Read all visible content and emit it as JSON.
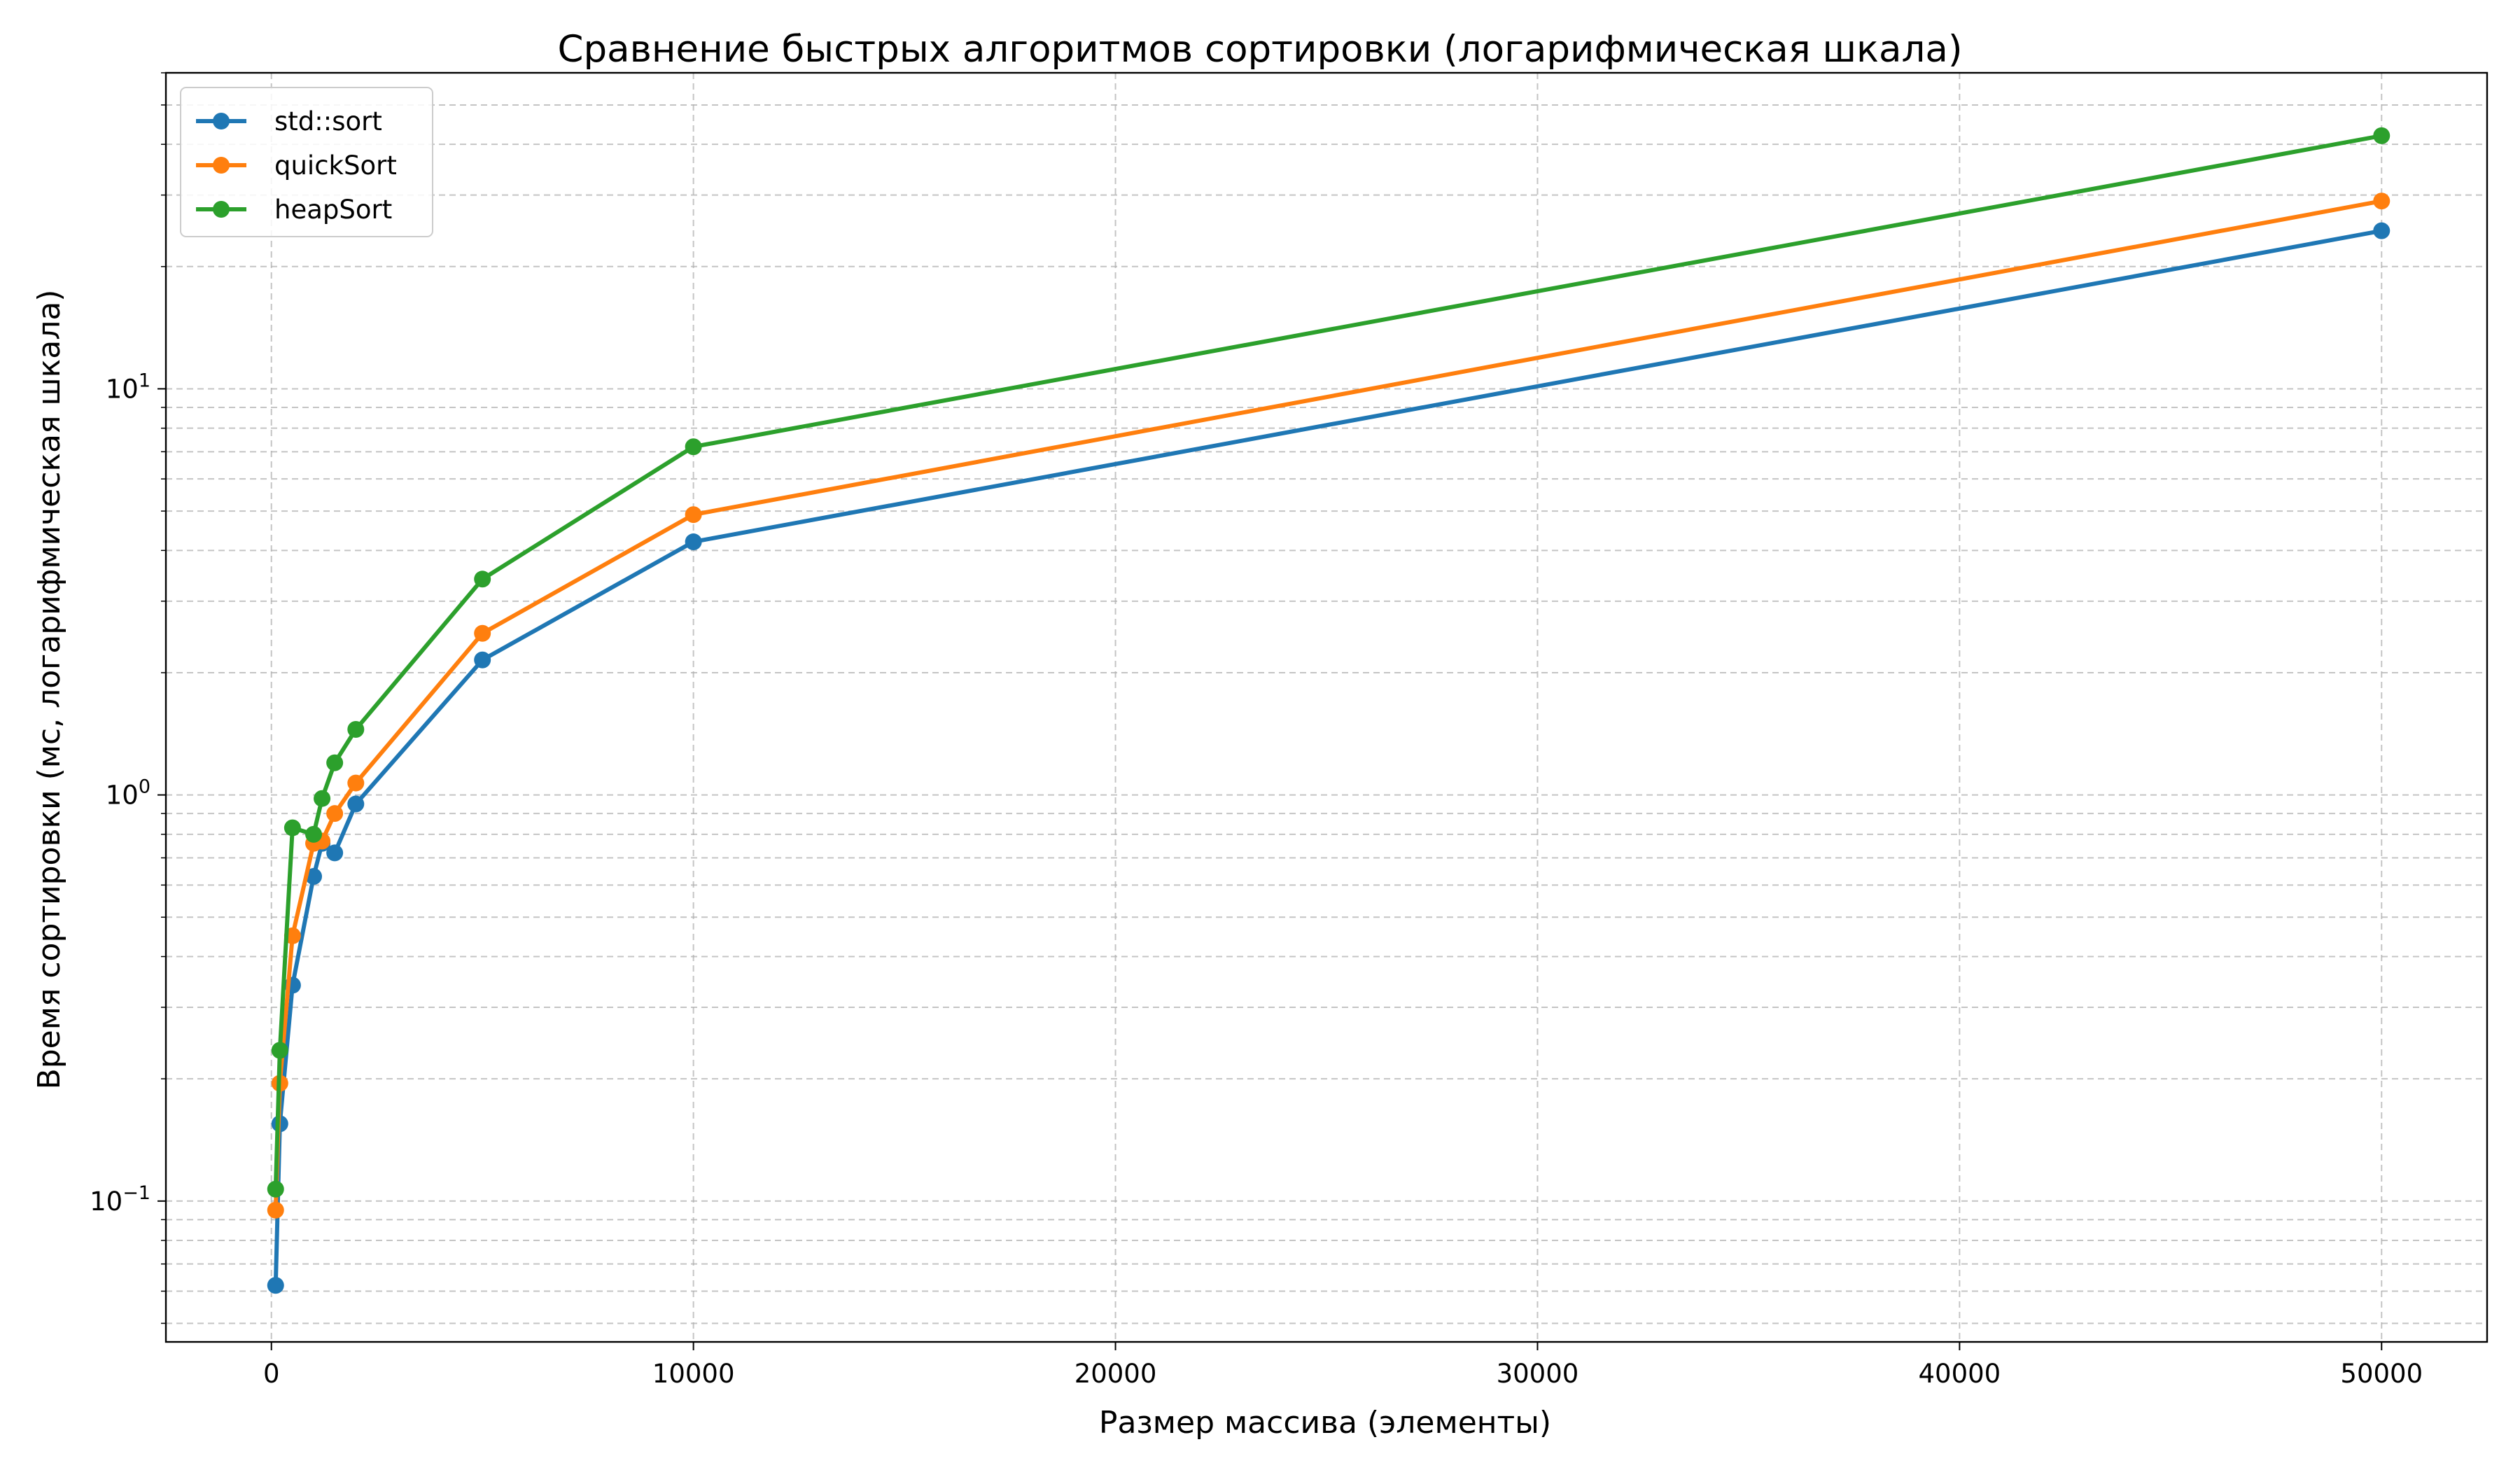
{
  "chart_data": {
    "type": "line",
    "title": "Сравнение быстрых алгоритмов сортировки (логарифмическая шкала)",
    "xlabel": "Размер массива (элементы)",
    "ylabel": "Время сортировки (мс, логарифмическая шкала)",
    "x_scale": "linear",
    "y_scale": "log",
    "xlim": [
      -2500,
      52500
    ],
    "ylim": [
      0.045,
      60
    ],
    "x_ticks": [
      0,
      10000,
      20000,
      30000,
      40000,
      50000
    ],
    "x_tick_labels": [
      "0",
      "10000",
      "20000",
      "30000",
      "40000",
      "50000"
    ],
    "y_ticks": [
      0.1,
      1,
      10
    ],
    "y_tick_labels": [
      {
        "base": "10",
        "exp": "−1"
      },
      {
        "base": "10",
        "exp": "0"
      },
      {
        "base": "10",
        "exp": "1"
      }
    ],
    "grid": true,
    "legend_position": "upper-left",
    "x": [
      100,
      200,
      500,
      1000,
      1200,
      1500,
      2000,
      5000,
      10000,
      50000
    ],
    "series": [
      {
        "name": "std::sort",
        "color": "#1f77b4",
        "values": [
          0.062,
          0.155,
          0.34,
          0.63,
          0.76,
          0.72,
          0.95,
          2.15,
          4.2,
          24.5
        ]
      },
      {
        "name": "quickSort",
        "color": "#ff7f0e",
        "values": [
          0.095,
          0.195,
          0.45,
          0.76,
          0.77,
          0.9,
          1.07,
          2.5,
          4.9,
          29
        ]
      },
      {
        "name": "heapSort",
        "color": "#2ca02c",
        "values": [
          0.107,
          0.235,
          0.83,
          0.8,
          0.98,
          1.2,
          1.45,
          3.4,
          7.2,
          42
        ]
      }
    ]
  }
}
